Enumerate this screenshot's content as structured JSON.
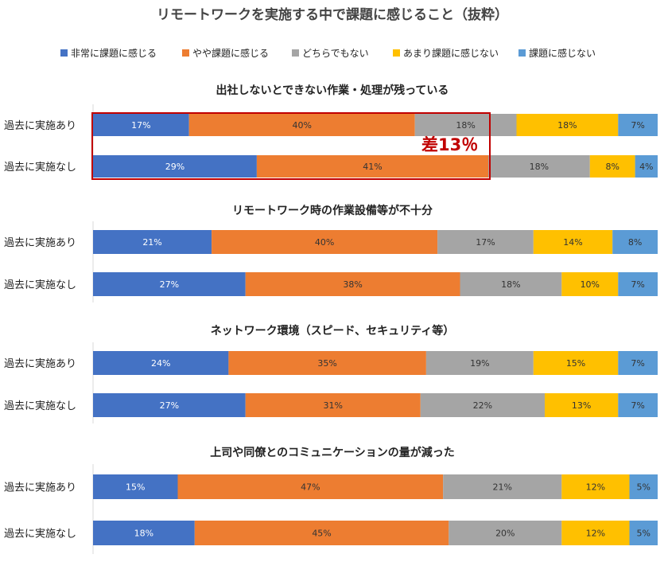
{
  "chart_data": {
    "type": "bar",
    "orientation": "horizontal",
    "stacked": "100%",
    "title": "リモートワークを実施する中で課題に感じること（抜粋）",
    "legend_position": "top",
    "legend": [
      {
        "name": "非常に課題に感じる",
        "color": "#4472c4"
      },
      {
        "name": "やや課題に感じる",
        "color": "#ed7d31"
      },
      {
        "name": "どちらでもない",
        "color": "#a5a5a5"
      },
      {
        "name": "あまり課題に感じない",
        "color": "#ffc000"
      },
      {
        "name": "課題に感じない",
        "color": "#5b9bd5"
      }
    ],
    "label_colors": [
      "#ffffff",
      "#333333",
      "#333333",
      "#333333",
      "#333333"
    ],
    "categories": [
      "過去に実施あり",
      "過去に実施なし"
    ],
    "panels": [
      {
        "title": "出社しないとできない作業・処理が残っている",
        "rows": [
          [
            17,
            40,
            18,
            18,
            7
          ],
          [
            29,
            41,
            18,
            8,
            4
          ]
        ],
        "annotation": "差13％"
      },
      {
        "title": "リモートワーク時の作業設備等が不十分",
        "rows": [
          [
            21,
            40,
            17,
            14,
            8
          ],
          [
            27,
            38,
            18,
            10,
            7
          ]
        ]
      },
      {
        "title": "ネットワーク環境（スピード、セキュリティ等）",
        "rows": [
          [
            24,
            35,
            19,
            15,
            7
          ],
          [
            27,
            31,
            22,
            13,
            7
          ]
        ]
      },
      {
        "title": "上司や同僚とのコミュニケーションの量が減った",
        "rows": [
          [
            15,
            47,
            21,
            12,
            5
          ],
          [
            18,
            45,
            20,
            12,
            5
          ]
        ]
      }
    ],
    "grid": false,
    "highlight_color": "#c00000"
  }
}
